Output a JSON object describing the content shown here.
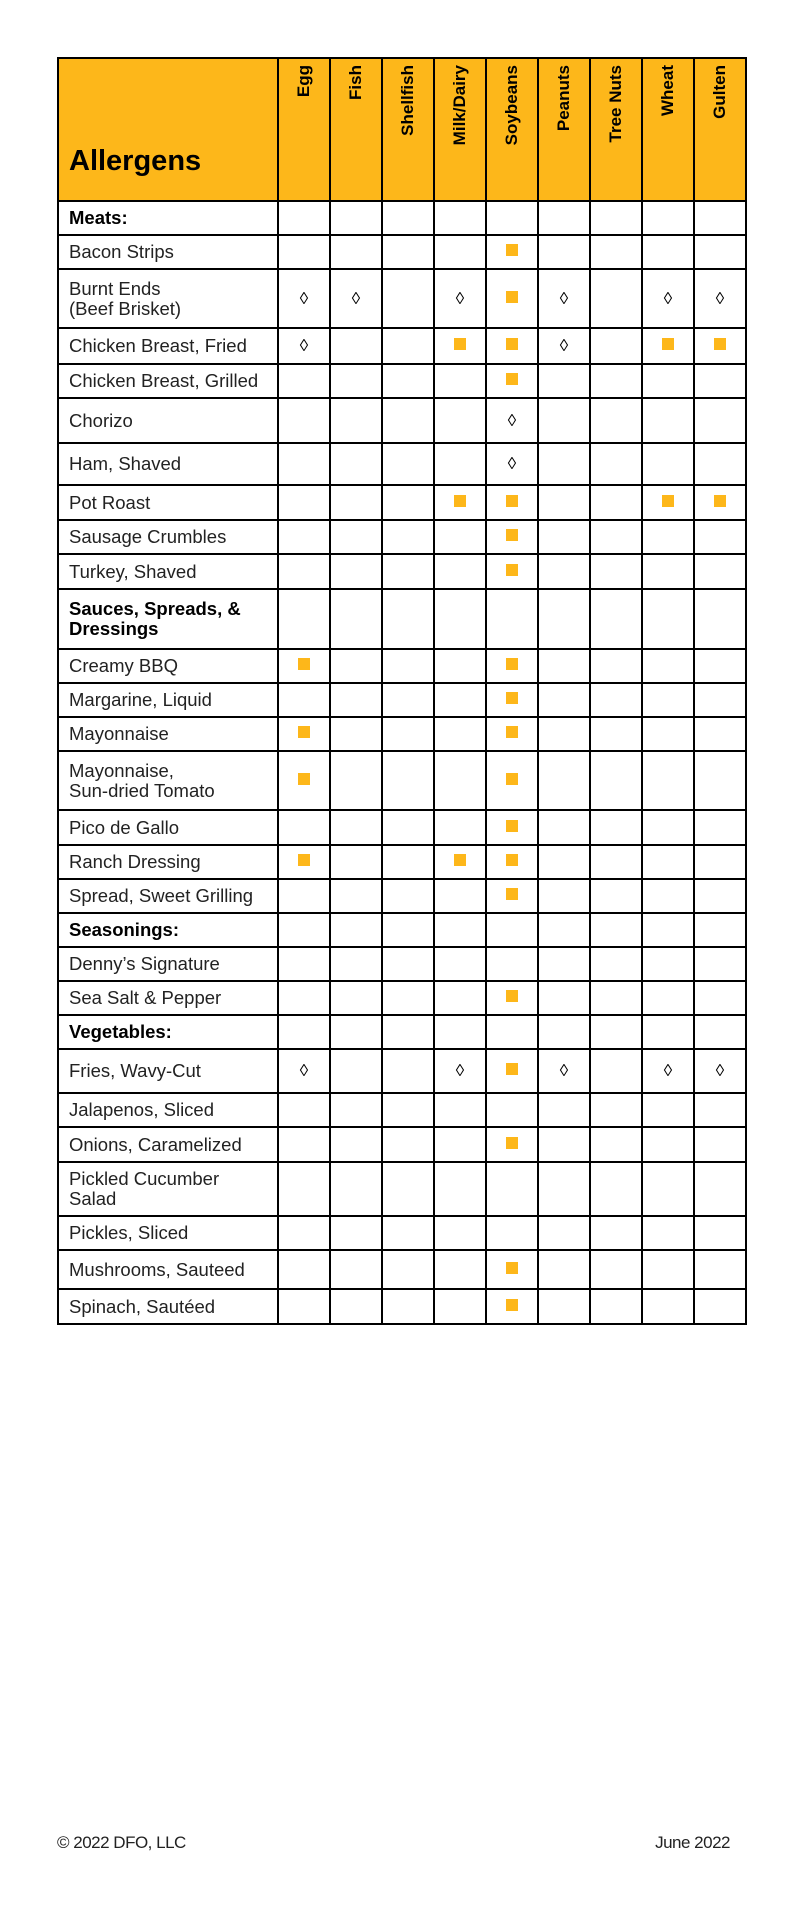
{
  "title": "Allergens",
  "columns": [
    "Egg",
    "Fish",
    "Shellfish",
    "Milk/Dairy",
    "Soybeans",
    "Peanuts",
    "Tree Nuts",
    "Wheat",
    "Gulten"
  ],
  "legend_codes": {
    "s": "square",
    "d": "diamond"
  },
  "colors": {
    "header": "#FDB71A",
    "square": "#FDB71A"
  },
  "rows": [
    {
      "name": "Meats:",
      "section": true,
      "cells": [
        "",
        "",
        "",
        "",
        "",
        "",
        "",
        "",
        ""
      ]
    },
    {
      "name": "Bacon Strips",
      "cells": [
        "",
        "",
        "",
        "",
        "s",
        "",
        "",
        "",
        ""
      ]
    },
    {
      "name": "Burnt Ends\n(Beef Brisket)",
      "cells": [
        "d",
        "d",
        "",
        "d",
        "s",
        "d",
        "",
        "d",
        "d"
      ]
    },
    {
      "name": "Chicken Breast, Fried",
      "cells": [
        "d",
        "",
        "",
        "s",
        "s",
        "d",
        "",
        "s",
        "s"
      ]
    },
    {
      "name": "Chicken Breast, Grilled",
      "cells": [
        "",
        "",
        "",
        "",
        "s",
        "",
        "",
        "",
        ""
      ]
    },
    {
      "name": "Chorizo",
      "cells": [
        "",
        "",
        "",
        "",
        "d",
        "",
        "",
        "",
        ""
      ]
    },
    {
      "name": "Ham, Shaved",
      "cells": [
        "",
        "",
        "",
        "",
        "d",
        "",
        "",
        "",
        ""
      ]
    },
    {
      "name": "Pot Roast",
      "cells": [
        "",
        "",
        "",
        "s",
        "s",
        "",
        "",
        "s",
        "s"
      ]
    },
    {
      "name": "Sausage Crumbles",
      "cells": [
        "",
        "",
        "",
        "",
        "s",
        "",
        "",
        "",
        ""
      ]
    },
    {
      "name": "Turkey, Shaved",
      "cells": [
        "",
        "",
        "",
        "",
        "s",
        "",
        "",
        "",
        ""
      ]
    },
    {
      "name": "Sauces, Spreads, &\nDressings",
      "section": true,
      "cells": [
        "",
        "",
        "",
        "",
        "",
        "",
        "",
        "",
        ""
      ]
    },
    {
      "name": "Creamy BBQ",
      "cells": [
        "s",
        "",
        "",
        "",
        "s",
        "",
        "",
        "",
        ""
      ]
    },
    {
      "name": "Margarine, Liquid",
      "cells": [
        "",
        "",
        "",
        "",
        "s",
        "",
        "",
        "",
        ""
      ]
    },
    {
      "name": "Mayonnaise",
      "cells": [
        "s",
        "",
        "",
        "",
        "s",
        "",
        "",
        "",
        ""
      ]
    },
    {
      "name": "Mayonnaise,\nSun-dried Tomato",
      "cells": [
        "s",
        "",
        "",
        "",
        "s",
        "",
        "",
        "",
        ""
      ]
    },
    {
      "name": "Pico de Gallo",
      "cells": [
        "",
        "",
        "",
        "",
        "s",
        "",
        "",
        "",
        ""
      ]
    },
    {
      "name": "Ranch Dressing",
      "cells": [
        "s",
        "",
        "",
        "s",
        "s",
        "",
        "",
        "",
        ""
      ]
    },
    {
      "name": "Spread, Sweet Grilling",
      "cells": [
        "",
        "",
        "",
        "",
        "s",
        "",
        "",
        "",
        ""
      ]
    },
    {
      "name": "Seasonings:",
      "section": true,
      "cells": [
        "",
        "",
        "",
        "",
        "",
        "",
        "",
        "",
        ""
      ]
    },
    {
      "name": "Denny’s Signature",
      "cells": [
        "",
        "",
        "",
        "",
        "",
        "",
        "",
        "",
        ""
      ]
    },
    {
      "name": "Sea Salt & Pepper",
      "cells": [
        "",
        "",
        "",
        "",
        "s",
        "",
        "",
        "",
        ""
      ]
    },
    {
      "name": "Vegetables:",
      "section": true,
      "cells": [
        "",
        "",
        "",
        "",
        "",
        "",
        "",
        "",
        ""
      ]
    },
    {
      "name": "Fries, Wavy-Cut",
      "cells": [
        "d",
        "",
        "",
        "d",
        "s",
        "d",
        "",
        "d",
        "d"
      ]
    },
    {
      "name": "Jalapenos, Sliced",
      "cells": [
        "",
        "",
        "",
        "",
        "",
        "",
        "",
        "",
        ""
      ]
    },
    {
      "name": "Onions, Caramelized",
      "cells": [
        "",
        "",
        "",
        "",
        "s",
        "",
        "",
        "",
        ""
      ]
    },
    {
      "name": "Pickled Cucumber\nSalad",
      "cells": [
        "",
        "",
        "",
        "",
        "",
        "",
        "",
        "",
        ""
      ]
    },
    {
      "name": "Pickles, Sliced",
      "cells": [
        "",
        "",
        "",
        "",
        "",
        "",
        "",
        "",
        ""
      ]
    },
    {
      "name": "Mushrooms, Sauteed",
      "cells": [
        "",
        "",
        "",
        "",
        "s",
        "",
        "",
        "",
        ""
      ]
    },
    {
      "name": "Spinach, Sautéed",
      "cells": [
        "",
        "",
        "",
        "",
        "s",
        "",
        "",
        "",
        ""
      ]
    }
  ],
  "footer": {
    "copyright": "© 2022 DFO, LLC",
    "date": "June 2022"
  }
}
